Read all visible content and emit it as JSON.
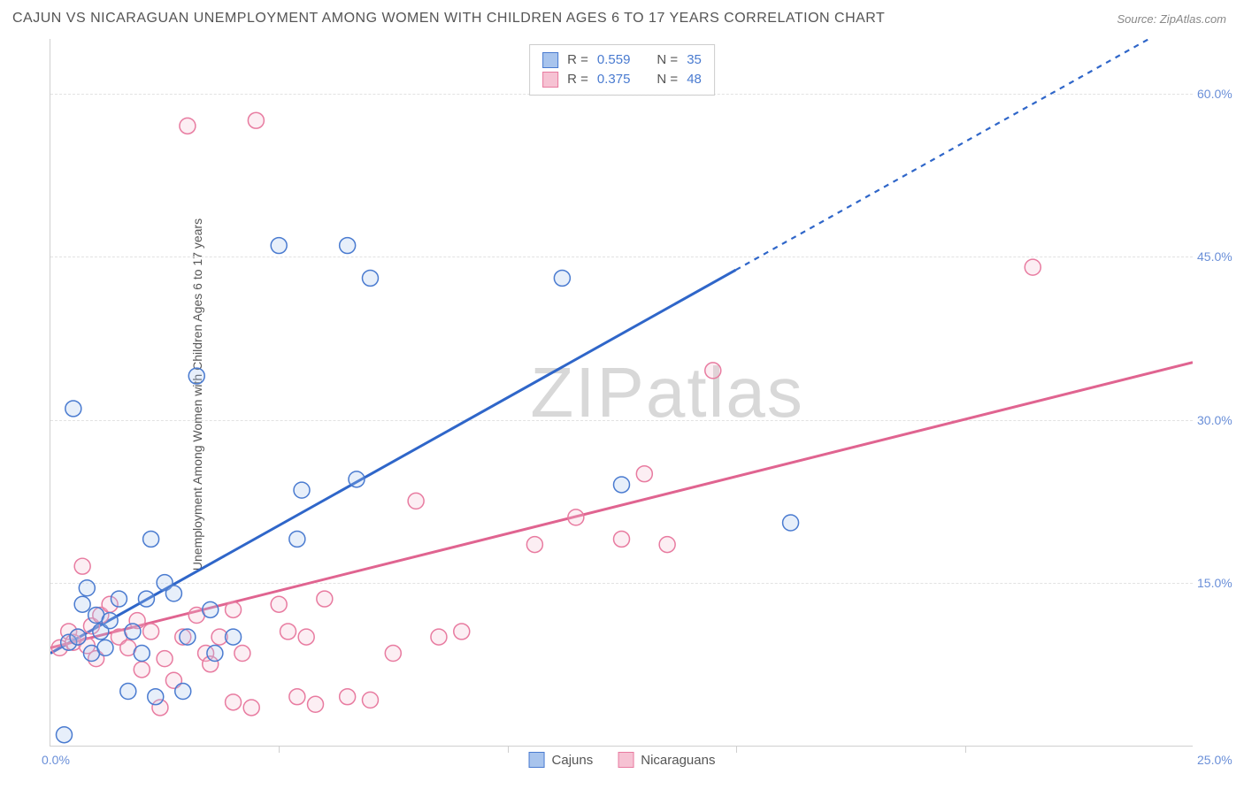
{
  "title": "CAJUN VS NICARAGUAN UNEMPLOYMENT AMONG WOMEN WITH CHILDREN AGES 6 TO 17 YEARS CORRELATION CHART",
  "source_label": "Source: ZipAtlas.com",
  "y_axis_title": "Unemployment Among Women with Children Ages 6 to 17 years",
  "watermark": "ZIPatlas",
  "chart": {
    "type": "scatter",
    "xlim": [
      0,
      25
    ],
    "ylim": [
      0,
      65
    ],
    "x_tick_step": 5,
    "y_ticks": [
      15,
      30,
      45,
      60
    ],
    "y_tick_labels": [
      "15.0%",
      "30.0%",
      "45.0%",
      "60.0%"
    ],
    "x_min_label": "0.0%",
    "x_max_label": "25.0%",
    "background_color": "#ffffff",
    "grid_color": "#e2e2e2",
    "axis_color": "#cfcfcf",
    "tick_label_color": "#6a8fd8",
    "marker_radius": 9,
    "marker_stroke_width": 1.5,
    "marker_fill_opacity": 0.28,
    "line_width_solid": 3,
    "line_width_dashed": 2.2,
    "dash_pattern": "6,6"
  },
  "series": {
    "cajuns": {
      "label": "Cajuns",
      "R": "0.559",
      "N": "35",
      "color_stroke": "#4a7bd0",
      "color_fill": "#a8c4ed",
      "line_color": "#2f66c9",
      "trend": {
        "intercept": 8.5,
        "slope": 2.35,
        "solid_until_x": 15.0
      },
      "points": [
        [
          0.3,
          1.0
        ],
        [
          0.4,
          9.5
        ],
        [
          0.5,
          31.0
        ],
        [
          0.6,
          10.0
        ],
        [
          0.7,
          13.0
        ],
        [
          0.8,
          14.5
        ],
        [
          0.9,
          8.5
        ],
        [
          1.0,
          12.0
        ],
        [
          1.1,
          10.5
        ],
        [
          1.2,
          9.0
        ],
        [
          1.3,
          11.5
        ],
        [
          1.5,
          13.5
        ],
        [
          1.7,
          5.0
        ],
        [
          1.8,
          10.5
        ],
        [
          2.0,
          8.5
        ],
        [
          2.1,
          13.5
        ],
        [
          2.2,
          19.0
        ],
        [
          2.3,
          4.5
        ],
        [
          2.5,
          15.0
        ],
        [
          2.7,
          14.0
        ],
        [
          2.9,
          5.0
        ],
        [
          3.0,
          10.0
        ],
        [
          3.2,
          34.0
        ],
        [
          3.5,
          12.5
        ],
        [
          3.6,
          8.5
        ],
        [
          4.0,
          10.0
        ],
        [
          5.0,
          46.0
        ],
        [
          5.4,
          19.0
        ],
        [
          5.5,
          23.5
        ],
        [
          6.5,
          46.0
        ],
        [
          6.7,
          24.5
        ],
        [
          7.0,
          43.0
        ],
        [
          11.2,
          43.0
        ],
        [
          12.5,
          24.0
        ],
        [
          16.2,
          20.5
        ]
      ]
    },
    "nicaraguans": {
      "label": "Nicaraguans",
      "R": "0.375",
      "N": "48",
      "color_stroke": "#e87ba0",
      "color_fill": "#f6c2d3",
      "line_color": "#e06490",
      "trend": {
        "intercept": 9.0,
        "slope": 1.05,
        "solid_until_x": 25.0
      },
      "points": [
        [
          0.2,
          9.0
        ],
        [
          0.4,
          10.5
        ],
        [
          0.5,
          9.5
        ],
        [
          0.6,
          10.0
        ],
        [
          0.7,
          16.5
        ],
        [
          0.8,
          9.2
        ],
        [
          0.9,
          11.0
        ],
        [
          1.0,
          8.0
        ],
        [
          1.1,
          12.0
        ],
        [
          1.3,
          13.0
        ],
        [
          1.5,
          10.0
        ],
        [
          1.7,
          9.0
        ],
        [
          1.9,
          11.5
        ],
        [
          2.0,
          7.0
        ],
        [
          2.2,
          10.5
        ],
        [
          2.4,
          3.5
        ],
        [
          2.5,
          8.0
        ],
        [
          2.7,
          6.0
        ],
        [
          2.9,
          10.0
        ],
        [
          3.0,
          57.0
        ],
        [
          3.2,
          12.0
        ],
        [
          3.4,
          8.5
        ],
        [
          3.5,
          7.5
        ],
        [
          3.7,
          10.0
        ],
        [
          4.0,
          12.5
        ],
        [
          4.0,
          4.0
        ],
        [
          4.2,
          8.5
        ],
        [
          4.4,
          3.5
        ],
        [
          4.5,
          57.5
        ],
        [
          5.0,
          13.0
        ],
        [
          5.2,
          10.5
        ],
        [
          5.4,
          4.5
        ],
        [
          5.6,
          10.0
        ],
        [
          5.8,
          3.8
        ],
        [
          6.0,
          13.5
        ],
        [
          6.5,
          4.5
        ],
        [
          7.0,
          4.2
        ],
        [
          7.5,
          8.5
        ],
        [
          8.0,
          22.5
        ],
        [
          8.5,
          10.0
        ],
        [
          9.0,
          10.5
        ],
        [
          10.6,
          18.5
        ],
        [
          11.5,
          21.0
        ],
        [
          12.5,
          19.0
        ],
        [
          13.0,
          25.0
        ],
        [
          13.5,
          18.5
        ],
        [
          14.5,
          34.5
        ],
        [
          21.5,
          44.0
        ]
      ]
    }
  },
  "legend_stats": {
    "R_label": "R =",
    "N_label": "N ="
  }
}
